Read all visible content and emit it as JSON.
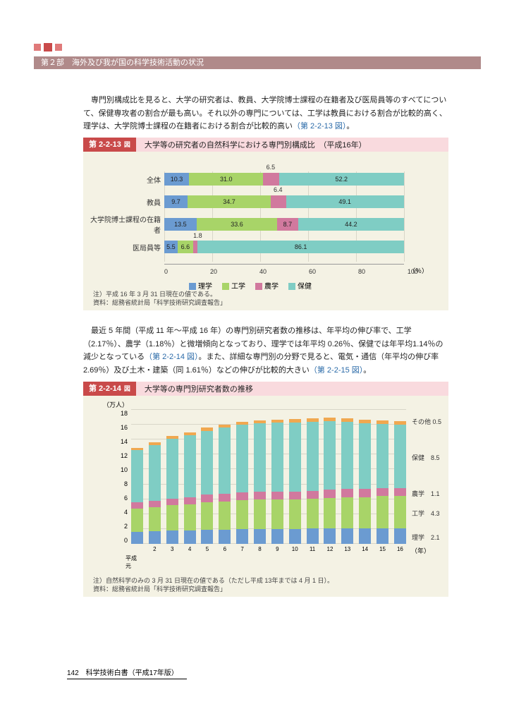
{
  "header": {
    "section": "第２部　海外及び我が国の科学技術活動の状況"
  },
  "para1": {
    "text": "　専門別構成比を見ると、大学の研究者は、教員、大学院博士課程の在籍者及び医局員等のすべてについて、保健専攻者の割合が最も高い。それ以外の専門については、工学は教員における割合が比較的高く、理学は、大学院博士課程の在籍者における割合が比較的高い",
    "link": "（第 2-2-13 図）",
    "tail": "。"
  },
  "fig1": {
    "num": "第 2-2-13",
    "sq": "図",
    "title": "大学等の研究者の自然科学における専門別構成比　（平成16年）",
    "rows": [
      {
        "label": "全体",
        "rigaku": 10.3,
        "kogaku": 31.0,
        "nogaku_display": "",
        "nogaku": 6.5,
        "hoken": 52.2,
        "callout": "6.5"
      },
      {
        "label": "教員",
        "rigaku": 9.7,
        "kogaku": 34.7,
        "nogaku_display": "",
        "nogaku": 6.4,
        "hoken": 49.1,
        "callout": "6.4"
      },
      {
        "label": "大学院博士課程の在籍者",
        "rigaku": 13.5,
        "kogaku": 33.6,
        "nogaku_display": "8.7",
        "nogaku": 8.7,
        "hoken": 44.2,
        "callout": ""
      },
      {
        "label": "医局員等",
        "rigaku": 5.5,
        "kogaku": 6.6,
        "nogaku_display": "",
        "nogaku": 1.8,
        "hoken": 86.1,
        "callout": "1.8",
        "callout_left": true
      }
    ],
    "xticks": [
      "0",
      "20",
      "40",
      "60",
      "80",
      "100"
    ],
    "pct": "（％）",
    "legend": {
      "rigaku": "理学",
      "kogaku": "工学",
      "nogaku": "農学",
      "hoken": "保健"
    },
    "note1": "注）平成 16 年 3 月 31 日現在の値である。",
    "note2": "資料：総務省統計局「科学技術研究調査報告」",
    "colors": {
      "rigaku": "#6b9bd1",
      "kogaku": "#a8d468",
      "nogaku": "#d1799e",
      "hoken": "#7fcdc4"
    }
  },
  "para2": {
    "t1": "　最近 5 年間（平成 11 年〜平成 16 年）の専門別研究者数の推移は、年平均の伸び率で、工学（2.17％）、農学（1.18％）と微増傾向となっており、理学では年平均 0.26％、保健では年平均1.14％の減少となっている",
    "l1": "（第 2-2-14 図）",
    "t2": "。また、詳細な専門別の分野で見ると、電気・通信（年平均の伸び率 2.69％）及び土木・建築（同 1.61％）などの伸びが比較的大きい",
    "l2": "（第 2-2-15 図）",
    "t3": "。"
  },
  "fig2": {
    "num": "第 2-2-14",
    "sq": "図",
    "title": "大学等の専門別研究者数の推移",
    "yunit": "（万人）",
    "ymax": 18,
    "yticks": [
      "0",
      "2",
      "4",
      "6",
      "8",
      "10",
      "12",
      "14",
      "16",
      "18"
    ],
    "xticks": [
      "2",
      "3",
      "4",
      "5",
      "6",
      "7",
      "8",
      "9",
      "10",
      "11",
      "12",
      "13",
      "14",
      "15",
      "16"
    ],
    "xstart": "平成\n元",
    "xunit": "（年）",
    "series_order": [
      "rigaku",
      "kogaku",
      "nogaku",
      "hoken",
      "other"
    ],
    "colors": {
      "rigaku": "#6b9bd1",
      "kogaku": "#a8d468",
      "nogaku": "#d1799e",
      "hoken": "#7fcdc4",
      "other": "#f0a850"
    },
    "bars": [
      {
        "rigaku": 1.6,
        "kogaku": 3.1,
        "nogaku": 0.9,
        "hoken": 7.0,
        "other": 0.3
      },
      {
        "rigaku": 1.7,
        "kogaku": 3.2,
        "nogaku": 0.9,
        "hoken": 7.5,
        "other": 0.3
      },
      {
        "rigaku": 1.8,
        "kogaku": 3.4,
        "nogaku": 0.9,
        "hoken": 8.0,
        "other": 0.4
      },
      {
        "rigaku": 1.8,
        "kogaku": 3.5,
        "nogaku": 1.0,
        "hoken": 8.3,
        "other": 0.4
      },
      {
        "rigaku": 1.9,
        "kogaku": 3.7,
        "nogaku": 1.0,
        "hoken": 8.6,
        "other": 0.4
      },
      {
        "rigaku": 1.9,
        "kogaku": 3.8,
        "nogaku": 1.0,
        "hoken": 8.9,
        "other": 0.4
      },
      {
        "rigaku": 2.0,
        "kogaku": 3.9,
        "nogaku": 1.0,
        "hoken": 9.1,
        "other": 0.4
      },
      {
        "rigaku": 2.0,
        "kogaku": 4.0,
        "nogaku": 1.0,
        "hoken": 9.2,
        "other": 0.4
      },
      {
        "rigaku": 2.0,
        "kogaku": 4.0,
        "nogaku": 1.0,
        "hoken": 9.3,
        "other": 0.4
      },
      {
        "rigaku": 2.0,
        "kogaku": 4.0,
        "nogaku": 1.0,
        "hoken": 9.3,
        "other": 0.5
      },
      {
        "rigaku": 2.1,
        "kogaku": 4.0,
        "nogaku": 1.0,
        "hoken": 9.3,
        "other": 0.5
      },
      {
        "rigaku": 2.1,
        "kogaku": 4.1,
        "nogaku": 1.1,
        "hoken": 9.2,
        "other": 0.5
      },
      {
        "rigaku": 2.1,
        "kogaku": 4.2,
        "nogaku": 1.1,
        "hoken": 9.0,
        "other": 0.5
      },
      {
        "rigaku": 2.1,
        "kogaku": 4.2,
        "nogaku": 1.1,
        "hoken": 8.8,
        "other": 0.5
      },
      {
        "rigaku": 2.1,
        "kogaku": 4.3,
        "nogaku": 1.1,
        "hoken": 8.6,
        "other": 0.5
      },
      {
        "rigaku": 2.1,
        "kogaku": 4.3,
        "nogaku": 1.1,
        "hoken": 8.5,
        "other": 0.5
      }
    ],
    "endlabels": {
      "other": "その他 0.5",
      "hoken": "保健　8.5",
      "nogaku": "農学　1.1",
      "kogaku": "工学　4.3",
      "rigaku": "理学　2.1"
    },
    "note1": "注）自然科学のみの 3 月 31 日現在の値である（ただし平成 13年までは 4 月 1 日）。",
    "note2": "資料：総務省統計局「科学技術研究調査報告」"
  },
  "footer": {
    "text": "142　科学技術白書（平成17年版）"
  }
}
